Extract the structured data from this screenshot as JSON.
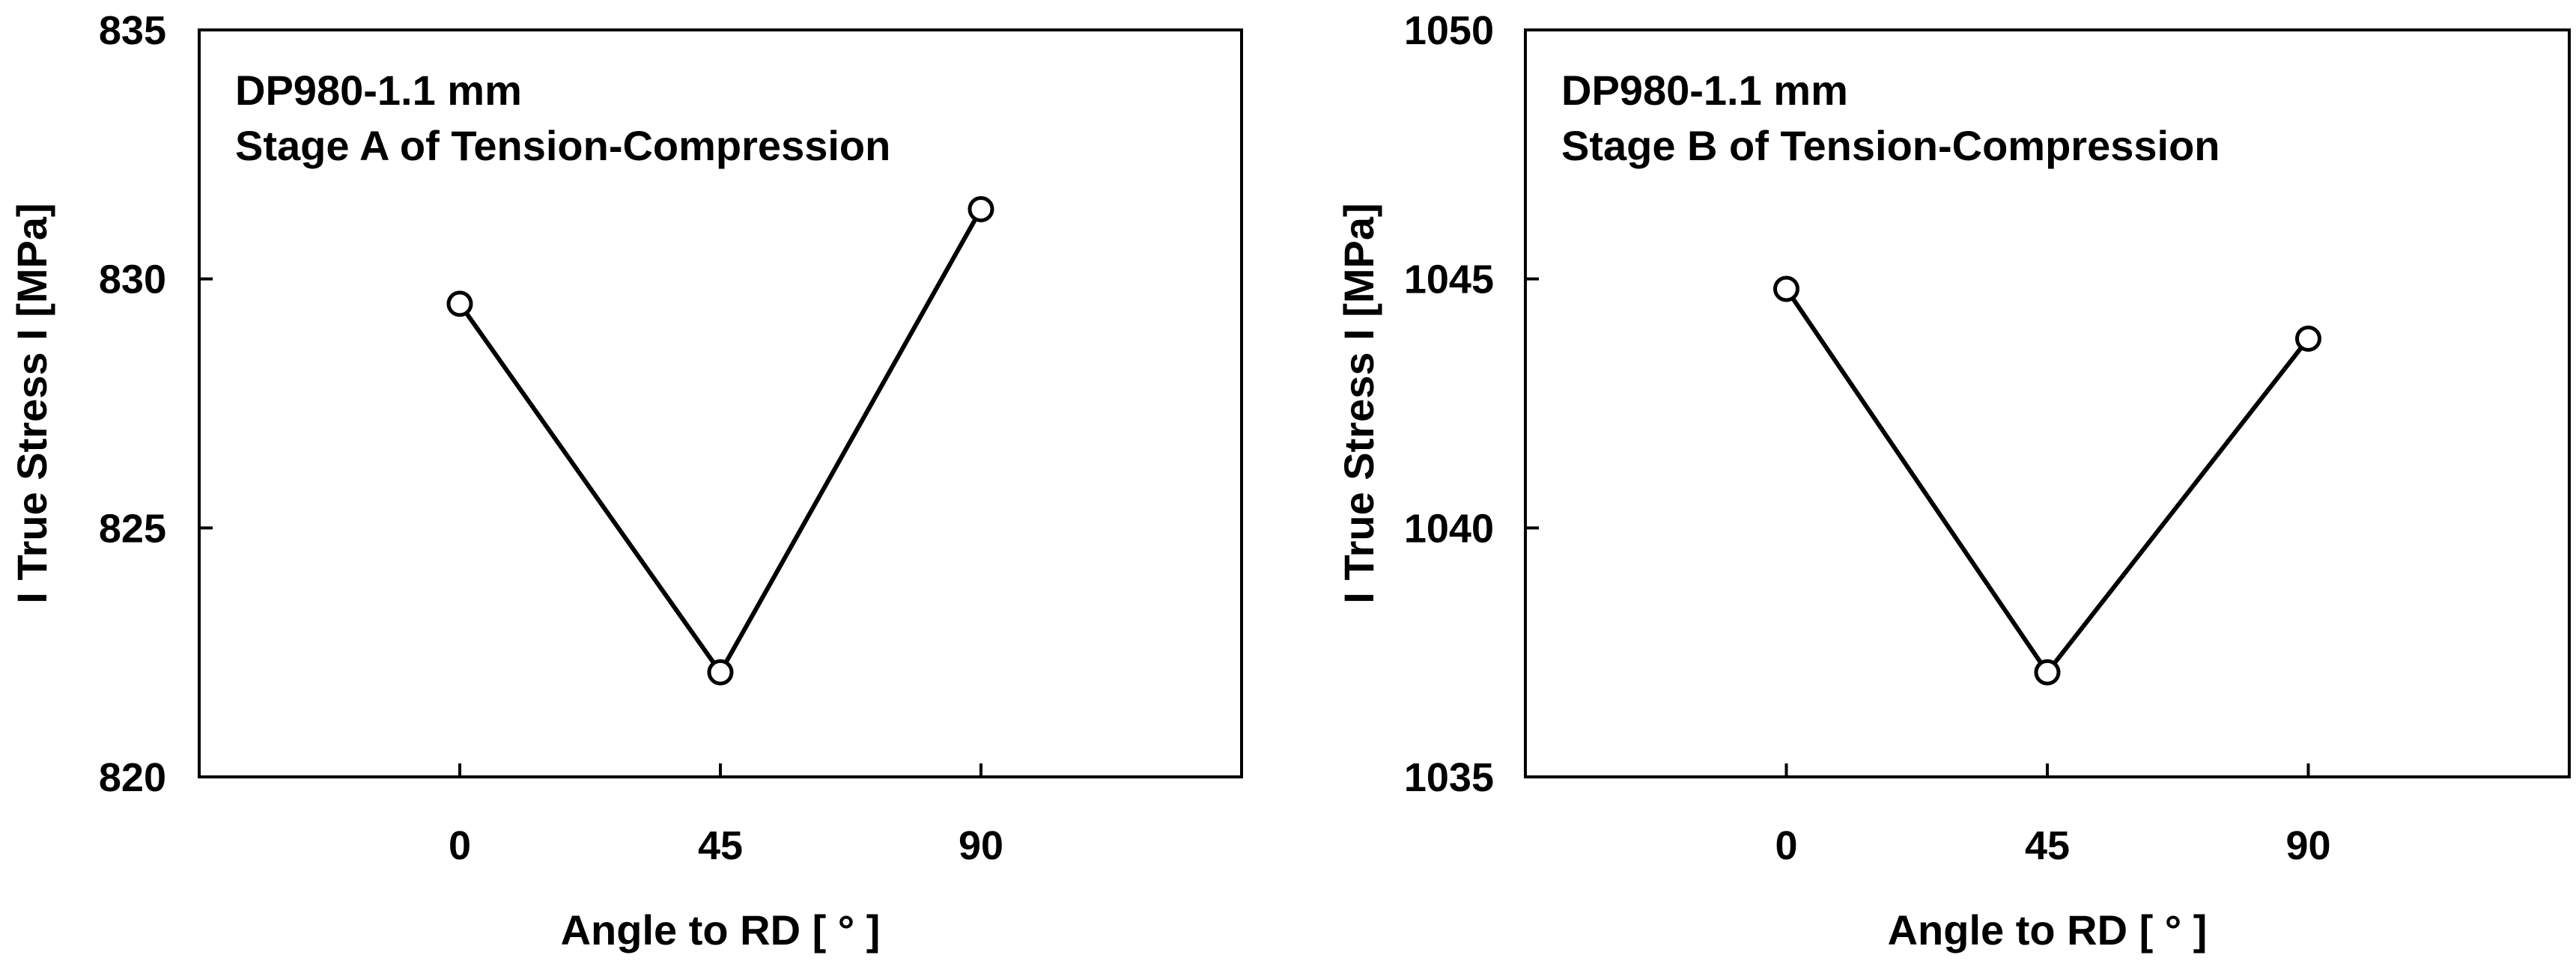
{
  "chart_data": [
    {
      "type": "line",
      "annotation": [
        "DP980-1.1 mm",
        "Stage A of Tension-Compression"
      ],
      "xlabel": "Angle to RD [ ° ]",
      "ylabel": "I True Stress I [MPa]",
      "x_ticks": [
        "0",
        "45",
        "90"
      ],
      "xlim": [
        -45,
        135
      ],
      "ylim": [
        820,
        835
      ],
      "y_ticks": [
        820,
        825,
        830,
        835
      ],
      "series": [
        {
          "x": [
            0,
            45,
            90
          ],
          "values": [
            829.5,
            822.1,
            831.4
          ]
        }
      ],
      "marker": "open-circle",
      "grid": false
    },
    {
      "type": "line",
      "annotation": [
        "DP980-1.1 mm",
        "Stage B of Tension-Compression"
      ],
      "xlabel": "Angle to RD [ ° ]",
      "ylabel": "I True Stress I [MPa]",
      "x_ticks": [
        "0",
        "45",
        "90"
      ],
      "xlim": [
        -45,
        135
      ],
      "ylim": [
        1035,
        1050
      ],
      "y_ticks": [
        1035,
        1040,
        1045,
        1050
      ],
      "series": [
        {
          "x": [
            0,
            45,
            90
          ],
          "values": [
            1044.8,
            1037.1,
            1043.8
          ]
        }
      ],
      "marker": "open-circle",
      "grid": false
    }
  ]
}
